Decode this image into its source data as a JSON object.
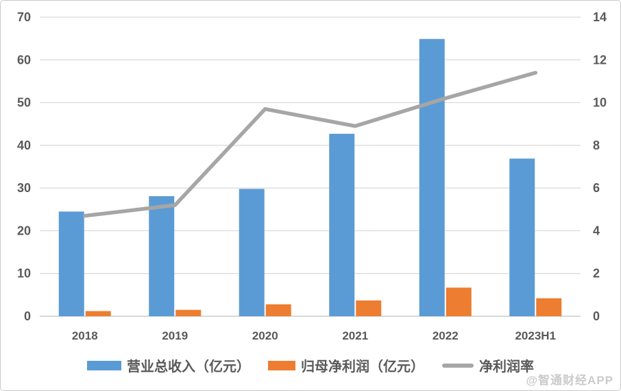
{
  "watermark": {
    "text": "@智通财经APP"
  },
  "chart_data": {
    "type": "bar",
    "subtype": "bar+line-dual-axis",
    "title": "",
    "categories": [
      "2018",
      "2019",
      "2020",
      "2021",
      "2022",
      "2023H1"
    ],
    "series": [
      {
        "name": "营业总收入（亿元）",
        "type": "bar",
        "axis": "left",
        "color": "#5b9bd5",
        "values": [
          24.5,
          28.1,
          29.8,
          42.7,
          64.9,
          36.9
        ]
      },
      {
        "name": "归母净利润（亿元）",
        "type": "bar",
        "axis": "left",
        "color": "#ed7d31",
        "values": [
          1.2,
          1.5,
          2.8,
          3.7,
          6.7,
          4.2
        ]
      },
      {
        "name": "净利润率",
        "type": "line",
        "axis": "right",
        "color": "#a6a6a6",
        "values": [
          4.7,
          5.2,
          9.7,
          8.9,
          10.2,
          11.4
        ]
      }
    ],
    "left_axis": {
      "min": 0,
      "max": 70,
      "step": 10,
      "ticks": [
        0,
        10,
        20,
        30,
        40,
        50,
        60,
        70
      ]
    },
    "right_axis": {
      "min": 0,
      "max": 14,
      "step": 2,
      "ticks": [
        0,
        2,
        4,
        6,
        8,
        10,
        12,
        14
      ]
    },
    "grid": true,
    "gridline_color": "#d9d9d9",
    "tick_label_color": "#595959",
    "legend_position": "bottom"
  }
}
